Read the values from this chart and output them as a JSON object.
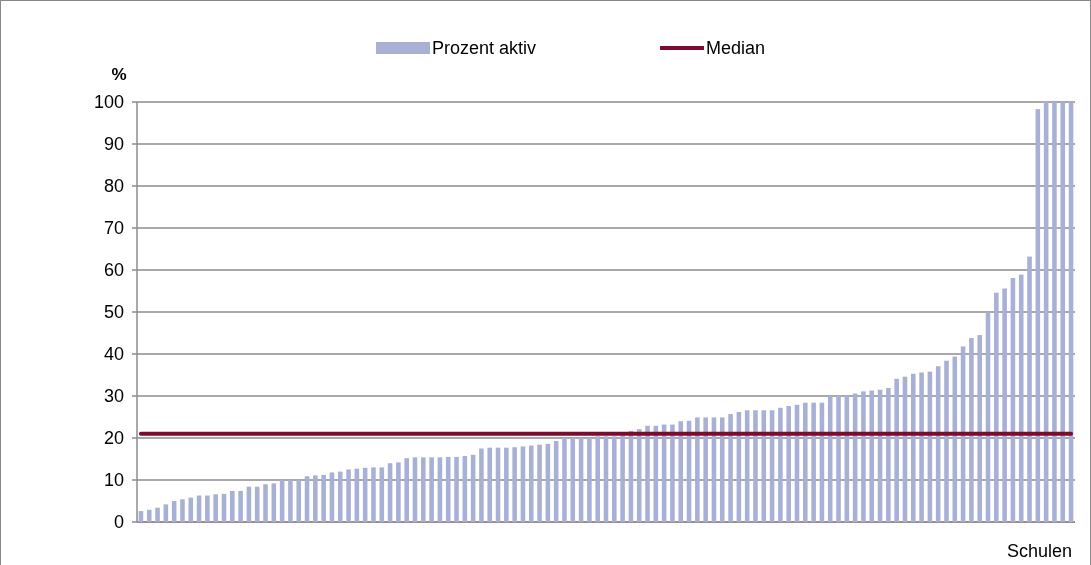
{
  "chart_data": {
    "type": "bar",
    "xlabel": "Schulen",
    "ylabel": "%",
    "categories": [
      null,
      null,
      null,
      null,
      null,
      null,
      null,
      null,
      null,
      null,
      null,
      null,
      null,
      null,
      null,
      null,
      null,
      null,
      null,
      null,
      null,
      null,
      null,
      null,
      null,
      null,
      null,
      null,
      null,
      null,
      null,
      null,
      null,
      null,
      null,
      null,
      null,
      null,
      null,
      null,
      null,
      null,
      null,
      null,
      null,
      null,
      null,
      null,
      null,
      null,
      null,
      null,
      null,
      null,
      null,
      null,
      null,
      null,
      null,
      null,
      null,
      null,
      null,
      null,
      null,
      null,
      null,
      null,
      null,
      null,
      null,
      null,
      null,
      null,
      null,
      null,
      null,
      null,
      null,
      null,
      null,
      null,
      null,
      null,
      null,
      null,
      null,
      null,
      null,
      null,
      null,
      null,
      null,
      null,
      null,
      null,
      null,
      null,
      null,
      null,
      null,
      null,
      null,
      null,
      null,
      null,
      null,
      null,
      null,
      null,
      null,
      null,
      null
    ],
    "series": [
      {
        "name": "Prozent aktiv",
        "color": "#a9b0d6",
        "values": [
          2.6,
          2.9,
          3.4,
          4.2,
          5,
          5.4,
          5.8,
          6.3,
          6.3,
          6.6,
          6.7,
          7.4,
          7.4,
          8.4,
          8.4,
          9,
          9.2,
          10,
          10,
          10,
          10.9,
          11.1,
          11.2,
          11.8,
          12,
          12.5,
          12.7,
          12.9,
          13,
          13,
          14,
          14.2,
          15.2,
          15.4,
          15.4,
          15.4,
          15.4,
          15.5,
          15.5,
          15.7,
          16,
          17.5,
          17.7,
          17.7,
          17.7,
          17.8,
          18,
          18.2,
          18.4,
          18.6,
          19.3,
          20,
          20,
          20,
          20,
          20.4,
          20.4,
          20.4,
          20.7,
          21.7,
          22.1,
          22.9,
          22.9,
          23.2,
          23.2,
          24,
          24.1,
          24.9,
          24.9,
          24.9,
          24.9,
          25.7,
          26.2,
          26.6,
          26.6,
          26.6,
          26.6,
          27.2,
          27.6,
          27.9,
          28.4,
          28.4,
          28.4,
          30,
          30,
          30,
          30.6,
          31.1,
          31.3,
          31.5,
          31.9,
          34.1,
          34.6,
          35.3,
          35.6,
          35.8,
          37.1,
          38.4,
          39.4,
          41.8,
          43.8,
          44.5,
          50,
          54.6,
          55.6,
          58.1,
          58.9,
          63.2,
          98.3,
          100,
          100,
          100,
          100
        ]
      },
      {
        "name": "Median",
        "type": "line",
        "color": "#7b0c2e",
        "values": [
          21,
          21,
          21,
          21,
          21,
          21,
          21,
          21,
          21,
          21,
          21,
          21,
          21,
          21,
          21,
          21,
          21,
          21,
          21,
          21,
          21,
          21,
          21,
          21,
          21,
          21,
          21,
          21,
          21,
          21,
          21,
          21,
          21,
          21,
          21,
          21,
          21,
          21,
          21,
          21,
          21,
          21,
          21,
          21,
          21,
          21,
          21,
          21,
          21,
          21,
          21,
          21,
          21,
          21,
          21,
          21,
          21,
          21,
          21,
          21,
          21,
          21,
          21,
          21,
          21,
          21,
          21,
          21,
          21,
          21,
          21,
          21,
          21,
          21,
          21,
          21,
          21,
          21,
          21,
          21,
          21,
          21,
          21,
          21,
          21,
          21,
          21,
          21,
          21,
          21,
          21,
          21,
          21,
          21,
          21,
          21,
          21,
          21,
          21,
          21,
          21,
          21,
          21,
          21,
          21,
          21,
          21,
          21,
          21,
          21,
          21,
          21,
          21
        ]
      }
    ],
    "ylim": [
      0,
      100
    ],
    "yticks": [
      0,
      10,
      20,
      30,
      40,
      50,
      60,
      70,
      80,
      90,
      100
    ],
    "grid": "y",
    "legend": "top"
  }
}
